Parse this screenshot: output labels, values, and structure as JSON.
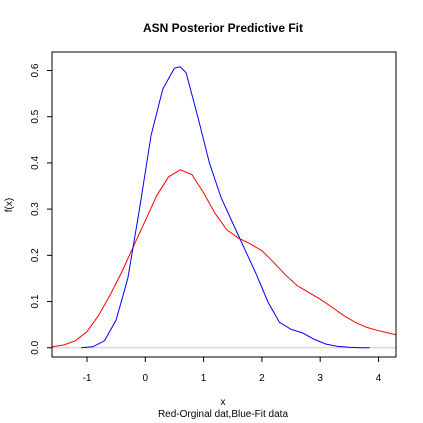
{
  "chart_data": {
    "type": "line",
    "title": "ASN Posterior Predictive Fit",
    "xlabel": "x",
    "sublabel": "Red-Orginal dat,Blue-Fit data",
    "ylabel": "f(x)",
    "xlim": [
      -1.6,
      4.3
    ],
    "ylim": [
      -0.02,
      0.64
    ],
    "x_ticks": [
      -1,
      0,
      1,
      2,
      3,
      4
    ],
    "y_ticks": [
      0.0,
      0.1,
      0.2,
      0.3,
      0.4,
      0.5,
      0.6
    ],
    "baseline": 0,
    "colors": {
      "original": "#ff0000",
      "fit": "#0000ff",
      "baseline": "#c8c8c8"
    },
    "series": [
      {
        "color": "#ff0000",
        "x": [
          -1.6,
          -1.4,
          -1.2,
          -1.0,
          -0.8,
          -0.6,
          -0.4,
          -0.2,
          0.0,
          0.2,
          0.4,
          0.6,
          0.8,
          1.0,
          1.2,
          1.4,
          1.6,
          1.8,
          2.0,
          2.2,
          2.4,
          2.6,
          2.8,
          3.0,
          3.2,
          3.4,
          3.6,
          3.8,
          4.0,
          4.2,
          4.3
        ],
        "y": [
          0.002,
          0.006,
          0.015,
          0.035,
          0.07,
          0.115,
          0.165,
          0.22,
          0.275,
          0.33,
          0.37,
          0.385,
          0.375,
          0.335,
          0.29,
          0.255,
          0.237,
          0.225,
          0.21,
          0.185,
          0.158,
          0.135,
          0.12,
          0.105,
          0.088,
          0.07,
          0.055,
          0.044,
          0.037,
          0.031,
          0.028
        ]
      },
      {
        "color": "#0000ff",
        "x": [
          -1.1,
          -0.9,
          -0.7,
          -0.5,
          -0.3,
          -0.1,
          0.1,
          0.3,
          0.5,
          0.6,
          0.7,
          0.9,
          1.1,
          1.3,
          1.5,
          1.7,
          1.9,
          2.1,
          2.3,
          2.5,
          2.7,
          2.9,
          3.1,
          3.3,
          3.5,
          3.7,
          3.85
        ],
        "y": [
          0.0,
          0.002,
          0.015,
          0.06,
          0.15,
          0.3,
          0.46,
          0.56,
          0.605,
          0.608,
          0.595,
          0.5,
          0.4,
          0.325,
          0.27,
          0.215,
          0.16,
          0.1,
          0.055,
          0.04,
          0.032,
          0.018,
          0.008,
          0.003,
          0.001,
          0.0,
          0.0
        ]
      }
    ]
  }
}
